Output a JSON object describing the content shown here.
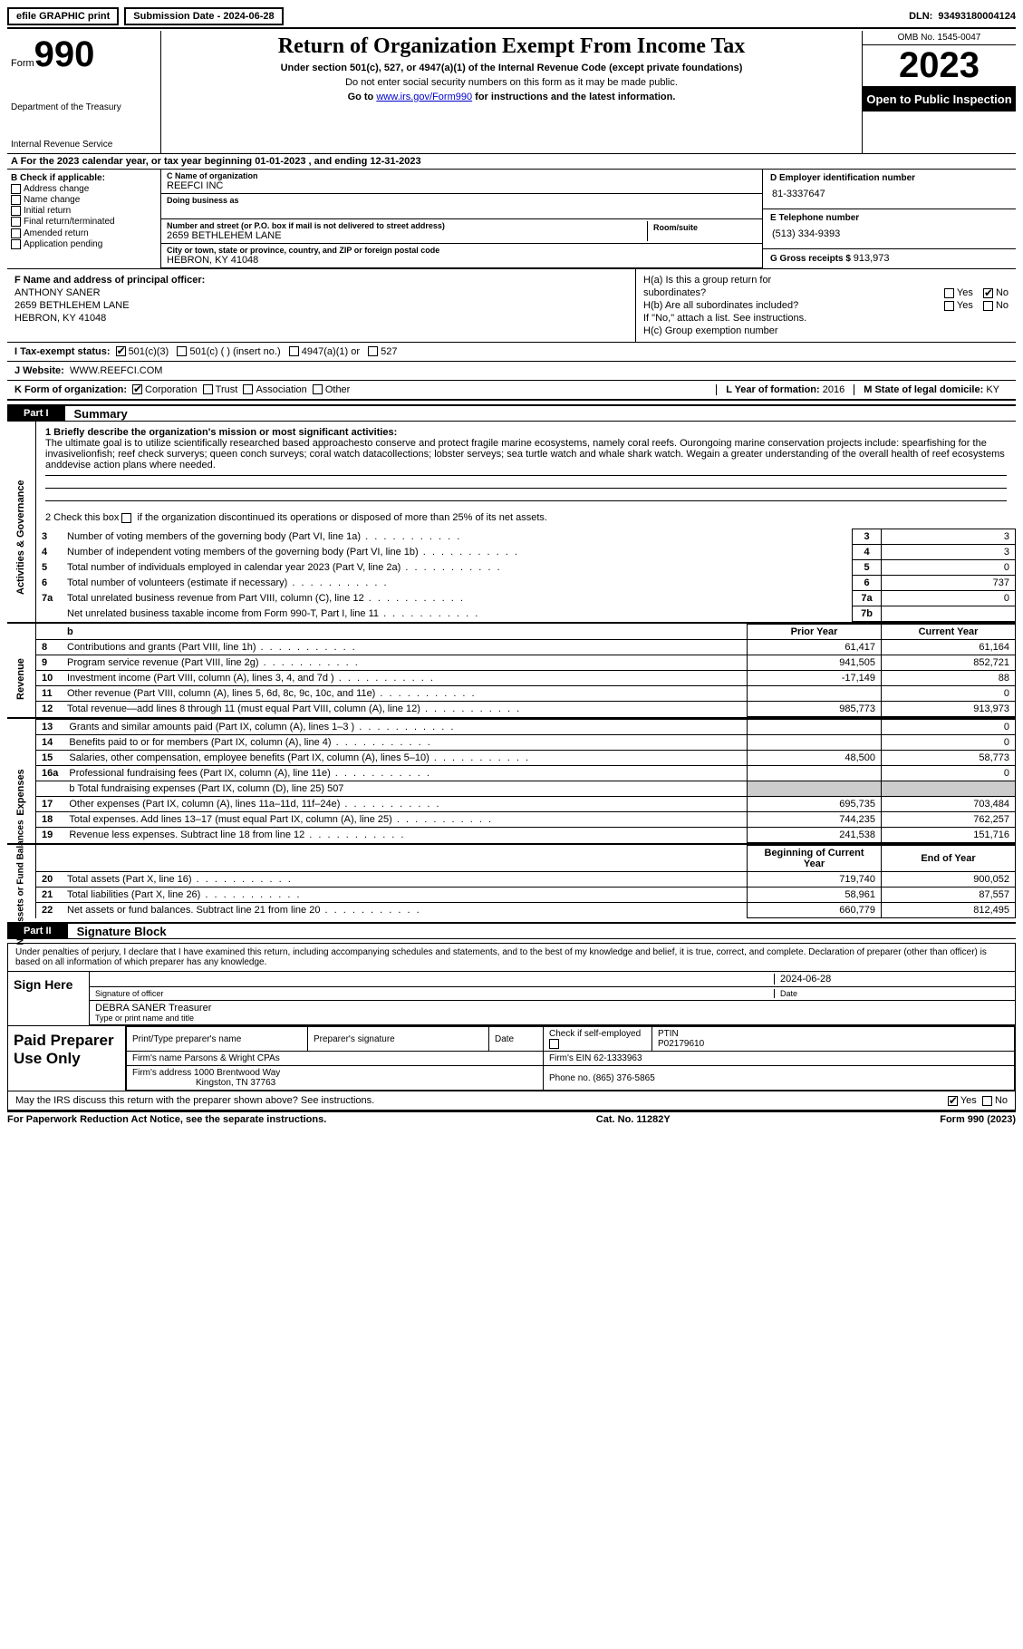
{
  "topbar": {
    "efile": "efile GRAPHIC print",
    "submission_label": "Submission Date - ",
    "submission_date": "2024-06-28",
    "dln_label": "DLN: ",
    "dln": "93493180004124"
  },
  "header": {
    "form_label": "Form",
    "form_no": "990",
    "dept1": "Department of the Treasury",
    "dept2": "Internal Revenue Service",
    "title": "Return of Organization Exempt From Income Tax",
    "subtitle": "Under section 501(c), 527, or 4947(a)(1) of the Internal Revenue Code (except private foundations)",
    "note1": "Do not enter social security numbers on this form as it may be made public.",
    "note2_pre": "Go to ",
    "note2_link": "www.irs.gov/Form990",
    "note2_post": " for instructions and the latest information.",
    "omb": "OMB No. 1545-0047",
    "year": "2023",
    "public": "Open to Public Inspection"
  },
  "period": {
    "text": "A For the 2023 calendar year, or tax year beginning 01-01-2023   , and ending 12-31-2023"
  },
  "sectionB": {
    "hd": "B Check if applicable:",
    "opts": [
      "Address change",
      "Name change",
      "Initial return",
      "Final return/terminated",
      "Amended return",
      "Application pending"
    ]
  },
  "sectionC": {
    "name_label": "C Name of organization",
    "name": "REEFCI INC",
    "dba_label": "Doing business as",
    "street_label": "Number and street (or P.O. box if mail is not delivered to street address)",
    "room_label": "Room/suite",
    "street": "2659 BETHLEHEM LANE",
    "city_label": "City or town, state or province, country, and ZIP or foreign postal code",
    "city": "HEBRON, KY  41048"
  },
  "sectionD": {
    "ein_label": "D Employer identification number",
    "ein": "81-3337647",
    "phone_label": "E Telephone number",
    "phone": "(513) 334-9393",
    "gross_label": "G Gross receipts $ ",
    "gross": "913,973"
  },
  "sectionF": {
    "label": "F  Name and address of principal officer:",
    "name": "ANTHONY SANER",
    "addr1": "2659 BETHLEHEM LANE",
    "addr2": "HEBRON, KY  41048"
  },
  "sectionH": {
    "a1": "H(a)  Is this a group return for",
    "a2": "subordinates?",
    "b1": "H(b)  Are all subordinates included?",
    "bnote": "If \"No,\" attach a list. See instructions.",
    "c": "H(c)  Group exemption number ",
    "yes": "Yes",
    "no": "No"
  },
  "sectionI": {
    "label": "I     Tax-exempt status:",
    "o1": "501(c)(3)",
    "o2": "501(c) (  ) (insert no.)",
    "o3": "4947(a)(1) or",
    "o4": "527"
  },
  "sectionJ": {
    "label": "J    Website: ",
    "value": "WWW.REEFCI.COM"
  },
  "sectionK": {
    "label": "K Form of organization:",
    "o1": "Corporation",
    "o2": "Trust",
    "o3": "Association",
    "o4": "Other"
  },
  "sectionL": {
    "label": "L Year of formation: ",
    "value": "2016"
  },
  "sectionM": {
    "label": "M State of legal domicile: ",
    "value": "KY"
  },
  "part1": {
    "tag": "Part I",
    "title": "Summary",
    "q1": "1   Briefly describe the organization's mission or most significant activities:",
    "mission": "The ultimate goal is to utilize scientifically researched based approachesto conserve and protect fragile marine ecosystems, namely coral reefs. Ourongoing marine conservation projects include: spearfishing for the invasivelionfish; reef check surverys; queen conch surveys; coral watch datacollections; lobster serveys; sea turtle watch and whale shark watch. Wegain a greater understanding of the overall health of reef ecosystems anddevise action plans where needed.",
    "q2_pre": "2   Check this box ",
    "q2_post": " if the organization discontinued its operations or disposed of more than 25% of its net assets.",
    "vlabels": [
      "Activities & Governance",
      "Revenue",
      "Expenses",
      "Net Assets or Fund Balances"
    ],
    "govrows": [
      {
        "n": "3",
        "t": "Number of voting members of the governing body (Part VI, line 1a)",
        "c": "3",
        "v": "3"
      },
      {
        "n": "4",
        "t": "Number of independent voting members of the governing body (Part VI, line 1b)",
        "c": "4",
        "v": "3"
      },
      {
        "n": "5",
        "t": "Total number of individuals employed in calendar year 2023 (Part V, line 2a)",
        "c": "5",
        "v": "0"
      },
      {
        "n": "6",
        "t": "Total number of volunteers (estimate if necessary)",
        "c": "6",
        "v": "737"
      },
      {
        "n": "7a",
        "t": "Total unrelated business revenue from Part VIII, column (C), line 12",
        "c": "7a",
        "v": "0"
      },
      {
        "n": "",
        "t": "Net unrelated business taxable income from Form 990-T, Part I, line 11",
        "c": "7b",
        "v": ""
      }
    ],
    "col_prior": "Prior Year",
    "col_current": "Current Year",
    "col_boy": "Beginning of Current Year",
    "col_eoy": "End of Year",
    "revrows": [
      {
        "n": "8",
        "t": "Contributions and grants (Part VIII, line 1h)",
        "p": "61,417",
        "c": "61,164"
      },
      {
        "n": "9",
        "t": "Program service revenue (Part VIII, line 2g)",
        "p": "941,505",
        "c": "852,721"
      },
      {
        "n": "10",
        "t": "Investment income (Part VIII, column (A), lines 3, 4, and 7d )",
        "p": "-17,149",
        "c": "88"
      },
      {
        "n": "11",
        "t": "Other revenue (Part VIII, column (A), lines 5, 6d, 8c, 9c, 10c, and 11e)",
        "p": "",
        "c": "0"
      },
      {
        "n": "12",
        "t": "Total revenue—add lines 8 through 11 (must equal Part VIII, column (A), line 12)",
        "p": "985,773",
        "c": "913,973"
      }
    ],
    "exprows": [
      {
        "n": "13",
        "t": "Grants and similar amounts paid (Part IX, column (A), lines 1–3 )",
        "p": "",
        "c": "0"
      },
      {
        "n": "14",
        "t": "Benefits paid to or for members (Part IX, column (A), line 4)",
        "p": "",
        "c": "0"
      },
      {
        "n": "15",
        "t": "Salaries, other compensation, employee benefits (Part IX, column (A), lines 5–10)",
        "p": "48,500",
        "c": "58,773"
      },
      {
        "n": "16a",
        "t": "Professional fundraising fees (Part IX, column (A), line 11e)",
        "p": "",
        "c": "0"
      }
    ],
    "exp16b_pre": "b  Total fundraising expenses (Part IX, column (D), line 25) ",
    "exp16b_val": "507",
    "exprows2": [
      {
        "n": "17",
        "t": "Other expenses (Part IX, column (A), lines 11a–11d, 11f–24e)",
        "p": "695,735",
        "c": "703,484"
      },
      {
        "n": "18",
        "t": "Total expenses. Add lines 13–17 (must equal Part IX, column (A), line 25)",
        "p": "744,235",
        "c": "762,257"
      },
      {
        "n": "19",
        "t": "Revenue less expenses. Subtract line 18 from line 12",
        "p": "241,538",
        "c": "151,716"
      }
    ],
    "netrows": [
      {
        "n": "20",
        "t": "Total assets (Part X, line 16)",
        "p": "719,740",
        "c": "900,052"
      },
      {
        "n": "21",
        "t": "Total liabilities (Part X, line 26)",
        "p": "58,961",
        "c": "87,557"
      },
      {
        "n": "22",
        "t": "Net assets or fund balances. Subtract line 21 from line 20",
        "p": "660,779",
        "c": "812,495"
      }
    ]
  },
  "part2": {
    "tag": "Part II",
    "title": "Signature Block",
    "decl": "Under penalties of perjury, I declare that I have examined this return, including accompanying schedules and statements, and to the best of my knowledge and belief, it is true, correct, and complete. Declaration of preparer (other than officer) is based on all information of which preparer has any knowledge.",
    "sign_here": "Sign Here",
    "sig_date": "2024-06-28",
    "sig_label": "Signature of officer",
    "date_label": "Date",
    "officer": "DEBRA SANER  Treasurer",
    "officer_label": "Type or print name and title",
    "paid": "Paid Preparer Use Only",
    "pt_name_label": "Print/Type preparer's name",
    "pt_sig_label": "Preparer's signature",
    "pt_date_label": "Date",
    "pt_check": "Check         if self-employed",
    "ptin_label": "PTIN",
    "ptin": "P02179610",
    "firm_name_label": "Firm's name   ",
    "firm_name": "Parsons & Wright CPAs",
    "firm_ein_label": "Firm's EIN  ",
    "firm_ein": "62-1333963",
    "firm_addr_label": "Firm's address ",
    "firm_addr1": "1000 Brentwood Way",
    "firm_addr2": "Kingston, TN  37763",
    "firm_phone_label": "Phone no. ",
    "firm_phone": "(865) 376-5865",
    "discuss": "May the IRS discuss this return with the preparer shown above? See instructions."
  },
  "footer": {
    "left": "For Paperwork Reduction Act Notice, see the separate instructions.",
    "mid": "Cat. No. 11282Y",
    "right": "Form 990 (2023)"
  }
}
